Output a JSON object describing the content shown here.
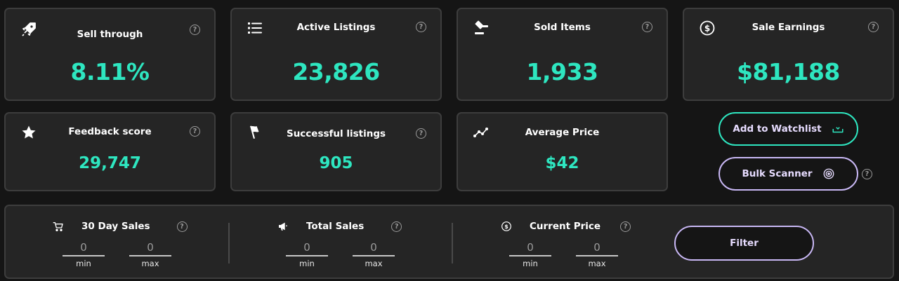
{
  "stats_row1": [
    {
      "icon": "rocket-icon",
      "title": "Sell through",
      "value": "8.11%"
    },
    {
      "icon": "list-icon",
      "title": "Active Listings",
      "value": "23,826"
    },
    {
      "icon": "gavel-icon",
      "title": "Sold Items",
      "value": "1,933"
    },
    {
      "icon": "dollar-circle-icon",
      "title": "Sale Earnings",
      "value": "$81,188"
    }
  ],
  "stats_row2": [
    {
      "icon": "star-icon",
      "title": "Feedback score",
      "value": "29,747"
    },
    {
      "icon": "flag-icon",
      "title": "Successful listings",
      "value": "905"
    },
    {
      "icon": "trend-line-icon",
      "title": "Average Price",
      "value": "$42"
    }
  ],
  "help_glyph": "?",
  "actions": {
    "watchlist_label": "Add to Watchlist",
    "bulk_scanner_label": "Bulk Scanner"
  },
  "filters": [
    {
      "icon": "cart-icon",
      "label": "30 Day Sales",
      "min_value": "0",
      "max_value": "0",
      "min_label": "min",
      "max_label": "max"
    },
    {
      "icon": "megaphone-icon",
      "label": "Total Sales",
      "min_value": "0",
      "max_value": "0",
      "min_label": "min",
      "max_label": "max"
    },
    {
      "icon": "dollar-circle-icon",
      "label": "Current Price",
      "min_value": "0",
      "max_value": "0",
      "min_label": "min",
      "max_label": "max"
    }
  ],
  "filter_button_label": "Filter",
  "colors": {
    "accent_value": "#2ee6c0",
    "watchlist_border": "#2ee6c0",
    "bulk_border": "#c9b8f5",
    "filter_border": "#c9b8f5",
    "card_bg": "#252525",
    "page_bg": "#151515"
  }
}
